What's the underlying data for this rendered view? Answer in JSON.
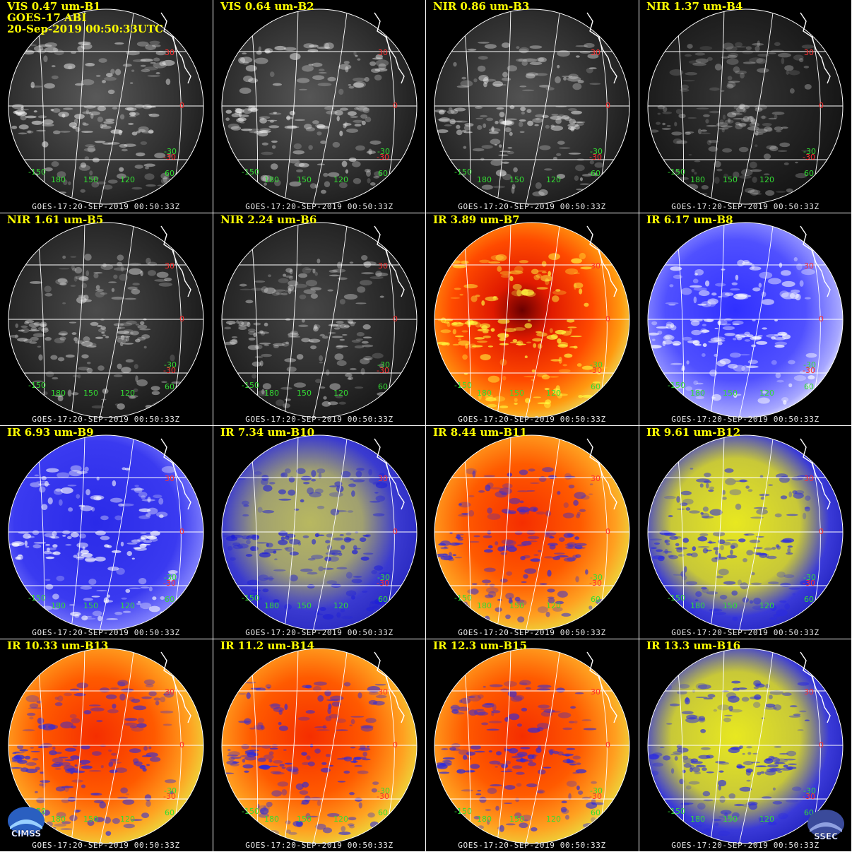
{
  "footer_text": "GOES-17:20-SEP-2019 00:50:33Z",
  "header_lines": [
    "GOES-17 ABI",
    "20-Sep-2019 00:50:33UTC"
  ],
  "grid_labels": {
    "lat": [
      "30",
      "0",
      "-30",
      "-30",
      "60"
    ],
    "lon": [
      "-150",
      "180",
      "150",
      "120",
      "60"
    ]
  },
  "label_colors": {
    "title": "#ffff00",
    "lat": "#ff3030",
    "lon": "#33dd33",
    "grid": "#ffffff"
  },
  "panels": [
    {
      "id": "B1",
      "title": "VIS 0.47 um-B1",
      "scheme": "gray",
      "intensity": 0.35
    },
    {
      "id": "B2",
      "title": "VIS 0.64 um-B2",
      "scheme": "gray",
      "intensity": 0.33
    },
    {
      "id": "B3",
      "title": "NIR 0.86 um-B3",
      "scheme": "gray",
      "intensity": 0.3
    },
    {
      "id": "B4",
      "title": "NIR 1.37 um-B4",
      "scheme": "gray",
      "intensity": 0.1
    },
    {
      "id": "B5",
      "title": "NIR 1.61 um-B5",
      "scheme": "gray",
      "intensity": 0.25
    },
    {
      "id": "B6",
      "title": "NIR 2.24 um-B6",
      "scheme": "gray",
      "intensity": 0.22
    },
    {
      "id": "B7",
      "title": "IR 3.89 um-B7",
      "scheme": "redhot"
    },
    {
      "id": "B8",
      "title": "IR 6.17 um-B8",
      "scheme": "bluewhite"
    },
    {
      "id": "B9",
      "title": "IR 6.93 um-B9",
      "scheme": "blue"
    },
    {
      "id": "B10",
      "title": "IR 7.34 um-B10",
      "scheme": "blueyellow"
    },
    {
      "id": "B11",
      "title": "IR 8.44 um-B11",
      "scheme": "orange"
    },
    {
      "id": "B12",
      "title": "IR 9.61 um-B12",
      "scheme": "yellowblue"
    },
    {
      "id": "B13",
      "title": "IR 10.33 um-B13",
      "scheme": "orange"
    },
    {
      "id": "B14",
      "title": "IR 11.2 um-B14",
      "scheme": "orange"
    },
    {
      "id": "B15",
      "title": "IR 12.3 um-B15",
      "scheme": "orange"
    },
    {
      "id": "B16",
      "title": "IR 13.3 um-B16",
      "scheme": "yellowblue"
    }
  ],
  "logos": {
    "left": "CIMSS",
    "right": "SSEC"
  }
}
